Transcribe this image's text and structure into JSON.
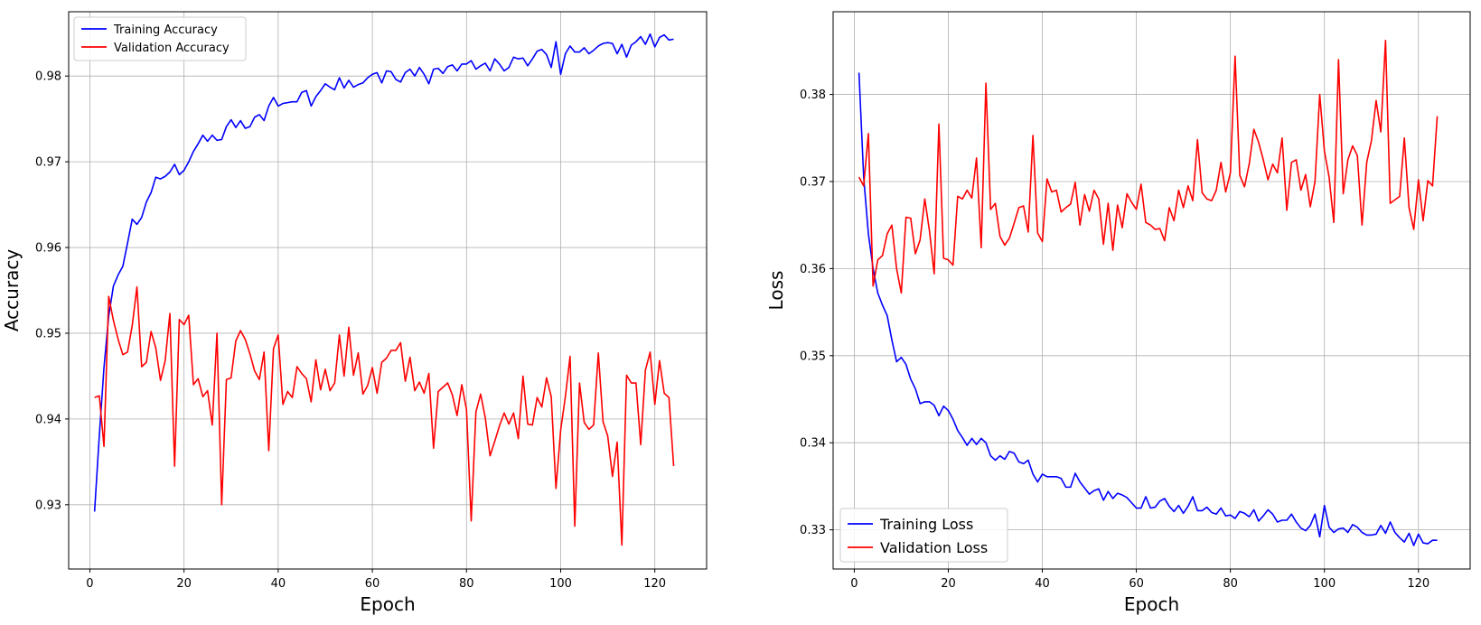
{
  "chart_data": [
    {
      "type": "line",
      "title": "",
      "xlabel": "Epoch",
      "ylabel": "Accuracy",
      "xlim": [
        -4.5,
        131
      ],
      "ylim": [
        0.9225,
        0.9875
      ],
      "xticks": [
        0,
        20,
        40,
        60,
        80,
        100,
        120
      ],
      "yticks": [
        0.93,
        0.94,
        0.95,
        0.96,
        0.97,
        0.98
      ],
      "ytick_labels": [
        "0.93",
        "0.94",
        "0.95",
        "0.96",
        "0.97",
        "0.98"
      ],
      "grid": true,
      "legend_position": "top-left",
      "x": [
        1,
        2,
        3,
        4,
        5,
        6,
        7,
        8,
        9,
        10,
        11,
        12,
        13,
        14,
        15,
        16,
        17,
        18,
        19,
        20,
        21,
        22,
        23,
        24,
        25,
        26,
        27,
        28,
        29,
        30,
        31,
        32,
        33,
        34,
        35,
        36,
        37,
        38,
        39,
        40,
        41,
        42,
        43,
        44,
        45,
        46,
        47,
        48,
        49,
        50,
        51,
        52,
        53,
        54,
        55,
        56,
        57,
        58,
        59,
        60,
        61,
        62,
        63,
        64,
        65,
        66,
        67,
        68,
        69,
        70,
        71,
        72,
        73,
        74,
        75,
        76,
        77,
        78,
        79,
        80,
        81,
        82,
        83,
        84,
        85,
        86,
        87,
        88,
        89,
        90,
        91,
        92,
        93,
        94,
        95,
        96,
        97,
        98,
        99,
        100,
        101,
        102,
        103,
        104,
        105,
        106,
        107,
        108,
        109,
        110,
        111,
        112,
        113,
        114,
        115,
        116,
        117,
        118,
        119,
        120,
        121,
        122,
        123,
        124
      ],
      "series": [
        {
          "name": "Training Accuracy",
          "color": "#0000ff",
          "values": [
            0.9292,
            0.938,
            0.946,
            0.952,
            0.9555,
            0.9568,
            0.9578,
            0.9605,
            0.9633,
            0.9627,
            0.9635,
            0.9653,
            0.9664,
            0.9682,
            0.968,
            0.9683,
            0.9688,
            0.9697,
            0.9685,
            0.969,
            0.97,
            0.9712,
            0.9721,
            0.9731,
            0.9724,
            0.9731,
            0.9725,
            0.9726,
            0.9741,
            0.9749,
            0.974,
            0.9748,
            0.9739,
            0.9741,
            0.9752,
            0.9755,
            0.9748,
            0.9765,
            0.9775,
            0.9765,
            0.9768,
            0.9769,
            0.977,
            0.977,
            0.9781,
            0.9783,
            0.9765,
            0.9776,
            0.9783,
            0.9791,
            0.9787,
            0.9784,
            0.9798,
            0.9786,
            0.9795,
            0.9787,
            0.979,
            0.9792,
            0.9798,
            0.9802,
            0.9804,
            0.9792,
            0.9806,
            0.9805,
            0.9796,
            0.9793,
            0.9804,
            0.9808,
            0.98,
            0.981,
            0.9802,
            0.9791,
            0.9808,
            0.9809,
            0.9803,
            0.9811,
            0.9813,
            0.9806,
            0.9814,
            0.9814,
            0.9818,
            0.9808,
            0.9812,
            0.9815,
            0.9806,
            0.982,
            0.9814,
            0.9806,
            0.981,
            0.9822,
            0.982,
            0.9821,
            0.9812,
            0.982,
            0.9829,
            0.9831,
            0.9825,
            0.981,
            0.984,
            0.9802,
            0.9826,
            0.9835,
            0.9828,
            0.9828,
            0.9833,
            0.9826,
            0.983,
            0.9835,
            0.9838,
            0.9839,
            0.9838,
            0.9826,
            0.9837,
            0.9822,
            0.9836,
            0.984,
            0.9846,
            0.9837,
            0.9849,
            0.9834,
            0.9845,
            0.9848,
            0.9842,
            0.9843
          ]
        },
        {
          "name": "Validation Accuracy",
          "color": "#ff0000",
          "values": [
            0.9425,
            0.9427,
            0.9368,
            0.9543,
            0.9515,
            0.9493,
            0.9475,
            0.9478,
            0.9509,
            0.9554,
            0.9461,
            0.9466,
            0.9502,
            0.9483,
            0.9445,
            0.9468,
            0.9523,
            0.9345,
            0.9516,
            0.951,
            0.9521,
            0.944,
            0.9447,
            0.9426,
            0.9433,
            0.9393,
            0.95,
            0.93,
            0.9446,
            0.9448,
            0.9491,
            0.9503,
            0.9493,
            0.9476,
            0.9456,
            0.9446,
            0.9478,
            0.9363,
            0.9482,
            0.9498,
            0.9417,
            0.9432,
            0.9425,
            0.9461,
            0.9453,
            0.9447,
            0.942,
            0.9469,
            0.9434,
            0.9458,
            0.9433,
            0.9442,
            0.9498,
            0.945,
            0.9507,
            0.9451,
            0.9477,
            0.9429,
            0.9439,
            0.946,
            0.943,
            0.9466,
            0.9471,
            0.948,
            0.948,
            0.9489,
            0.9444,
            0.9472,
            0.9433,
            0.9443,
            0.943,
            0.9453,
            0.9366,
            0.9432,
            0.9437,
            0.9442,
            0.9428,
            0.9404,
            0.944,
            0.9411,
            0.9281,
            0.9408,
            0.9429,
            0.9401,
            0.9357,
            0.9374,
            0.9392,
            0.9407,
            0.9394,
            0.9407,
            0.9377,
            0.945,
            0.9394,
            0.9393,
            0.9425,
            0.9414,
            0.9448,
            0.9426,
            0.9319,
            0.9387,
            0.9426,
            0.9473,
            0.9275,
            0.9442,
            0.9396,
            0.9388,
            0.9393,
            0.9477,
            0.9397,
            0.938,
            0.9333,
            0.9373,
            0.9253,
            0.9451,
            0.9442,
            0.9442,
            0.937,
            0.9457,
            0.9478,
            0.9417,
            0.9468,
            0.943,
            0.9425,
            0.9345
          ]
        }
      ]
    },
    {
      "type": "line",
      "title": "",
      "xlabel": "Epoch",
      "ylabel": "Loss",
      "xlim": [
        -4.5,
        131
      ],
      "ylim": [
        0.3255,
        0.3895
      ],
      "xticks": [
        0,
        20,
        40,
        60,
        80,
        100,
        120
      ],
      "yticks": [
        0.33,
        0.34,
        0.35,
        0.36,
        0.37,
        0.38
      ],
      "ytick_labels": [
        "0.33",
        "0.34",
        "0.35",
        "0.36",
        "0.37",
        "0.38"
      ],
      "grid": true,
      "legend_position": "bottom-left",
      "x": [
        1,
        2,
        3,
        4,
        5,
        6,
        7,
        8,
        9,
        10,
        11,
        12,
        13,
        14,
        15,
        16,
        17,
        18,
        19,
        20,
        21,
        22,
        23,
        24,
        25,
        26,
        27,
        28,
        29,
        30,
        31,
        32,
        33,
        34,
        35,
        36,
        37,
        38,
        39,
        40,
        41,
        42,
        43,
        44,
        45,
        46,
        47,
        48,
        49,
        50,
        51,
        52,
        53,
        54,
        55,
        56,
        57,
        58,
        59,
        60,
        61,
        62,
        63,
        64,
        65,
        66,
        67,
        68,
        69,
        70,
        71,
        72,
        73,
        74,
        75,
        76,
        77,
        78,
        79,
        80,
        81,
        82,
        83,
        84,
        85,
        86,
        87,
        88,
        89,
        90,
        91,
        92,
        93,
        94,
        95,
        96,
        97,
        98,
        99,
        100,
        101,
        102,
        103,
        104,
        105,
        106,
        107,
        108,
        109,
        110,
        111,
        112,
        113,
        114,
        115,
        116,
        117,
        118,
        119,
        120,
        121,
        122,
        123,
        124
      ],
      "series": [
        {
          "name": "Training Loss",
          "color": "#0000ff",
          "values": [
            0.3825,
            0.3705,
            0.364,
            0.36,
            0.3572,
            0.3558,
            0.3546,
            0.3518,
            0.3493,
            0.3498,
            0.349,
            0.3473,
            0.3462,
            0.3445,
            0.3447,
            0.3447,
            0.3443,
            0.3431,
            0.3442,
            0.3437,
            0.3427,
            0.3414,
            0.3406,
            0.3397,
            0.3405,
            0.3398,
            0.3405,
            0.34,
            0.3385,
            0.338,
            0.3385,
            0.3381,
            0.339,
            0.3388,
            0.3378,
            0.3376,
            0.338,
            0.3364,
            0.3355,
            0.3364,
            0.3361,
            0.3361,
            0.3361,
            0.3359,
            0.3349,
            0.3349,
            0.3365,
            0.3355,
            0.3348,
            0.3341,
            0.3345,
            0.3347,
            0.3334,
            0.3344,
            0.3336,
            0.3342,
            0.334,
            0.3337,
            0.3331,
            0.3325,
            0.3325,
            0.3338,
            0.3325,
            0.3326,
            0.3333,
            0.3336,
            0.3327,
            0.3321,
            0.3328,
            0.3319,
            0.3327,
            0.3338,
            0.3322,
            0.3322,
            0.3326,
            0.332,
            0.3318,
            0.3325,
            0.3316,
            0.3317,
            0.3313,
            0.3321,
            0.3319,
            0.3315,
            0.3323,
            0.331,
            0.3316,
            0.3323,
            0.3318,
            0.3309,
            0.3311,
            0.3311,
            0.3318,
            0.3309,
            0.3302,
            0.3299,
            0.3305,
            0.3318,
            0.3292,
            0.3328,
            0.3303,
            0.3297,
            0.3301,
            0.3302,
            0.3297,
            0.3306,
            0.3303,
            0.3297,
            0.3294,
            0.3294,
            0.3295,
            0.3305,
            0.3296,
            0.3309,
            0.3297,
            0.3291,
            0.3286,
            0.3296,
            0.3282,
            0.3295,
            0.3285,
            0.3284,
            0.3288,
            0.3288
          ]
        },
        {
          "name": "Validation Loss",
          "color": "#ff0000",
          "values": [
            0.3705,
            0.3695,
            0.3755,
            0.358,
            0.361,
            0.3615,
            0.364,
            0.365,
            0.36,
            0.3572,
            0.3659,
            0.3658,
            0.3617,
            0.3633,
            0.368,
            0.3643,
            0.3594,
            0.3766,
            0.3612,
            0.361,
            0.3604,
            0.3683,
            0.368,
            0.369,
            0.3681,
            0.3727,
            0.3624,
            0.3813,
            0.3668,
            0.3675,
            0.3637,
            0.3627,
            0.3635,
            0.3652,
            0.367,
            0.3672,
            0.3642,
            0.3753,
            0.3641,
            0.3631,
            0.3703,
            0.3688,
            0.369,
            0.3665,
            0.367,
            0.3674,
            0.3699,
            0.365,
            0.3685,
            0.3666,
            0.369,
            0.368,
            0.3628,
            0.3675,
            0.3621,
            0.3673,
            0.3647,
            0.3686,
            0.3676,
            0.3668,
            0.3697,
            0.3653,
            0.365,
            0.3645,
            0.3646,
            0.3632,
            0.367,
            0.3655,
            0.369,
            0.367,
            0.3695,
            0.3678,
            0.3748,
            0.3687,
            0.368,
            0.3678,
            0.369,
            0.3722,
            0.3688,
            0.371,
            0.3844,
            0.3707,
            0.3694,
            0.372,
            0.376,
            0.3745,
            0.3725,
            0.3702,
            0.372,
            0.371,
            0.375,
            0.3667,
            0.3722,
            0.3725,
            0.369,
            0.3708,
            0.3671,
            0.37,
            0.38,
            0.3735,
            0.3705,
            0.3653,
            0.384,
            0.3686,
            0.3725,
            0.3741,
            0.373,
            0.365,
            0.3722,
            0.3747,
            0.3793,
            0.3757,
            0.3862,
            0.3675,
            0.3679,
            0.3683,
            0.375,
            0.367,
            0.3645,
            0.3702,
            0.3655,
            0.3701,
            0.3695,
            0.3775
          ]
        }
      ]
    }
  ]
}
